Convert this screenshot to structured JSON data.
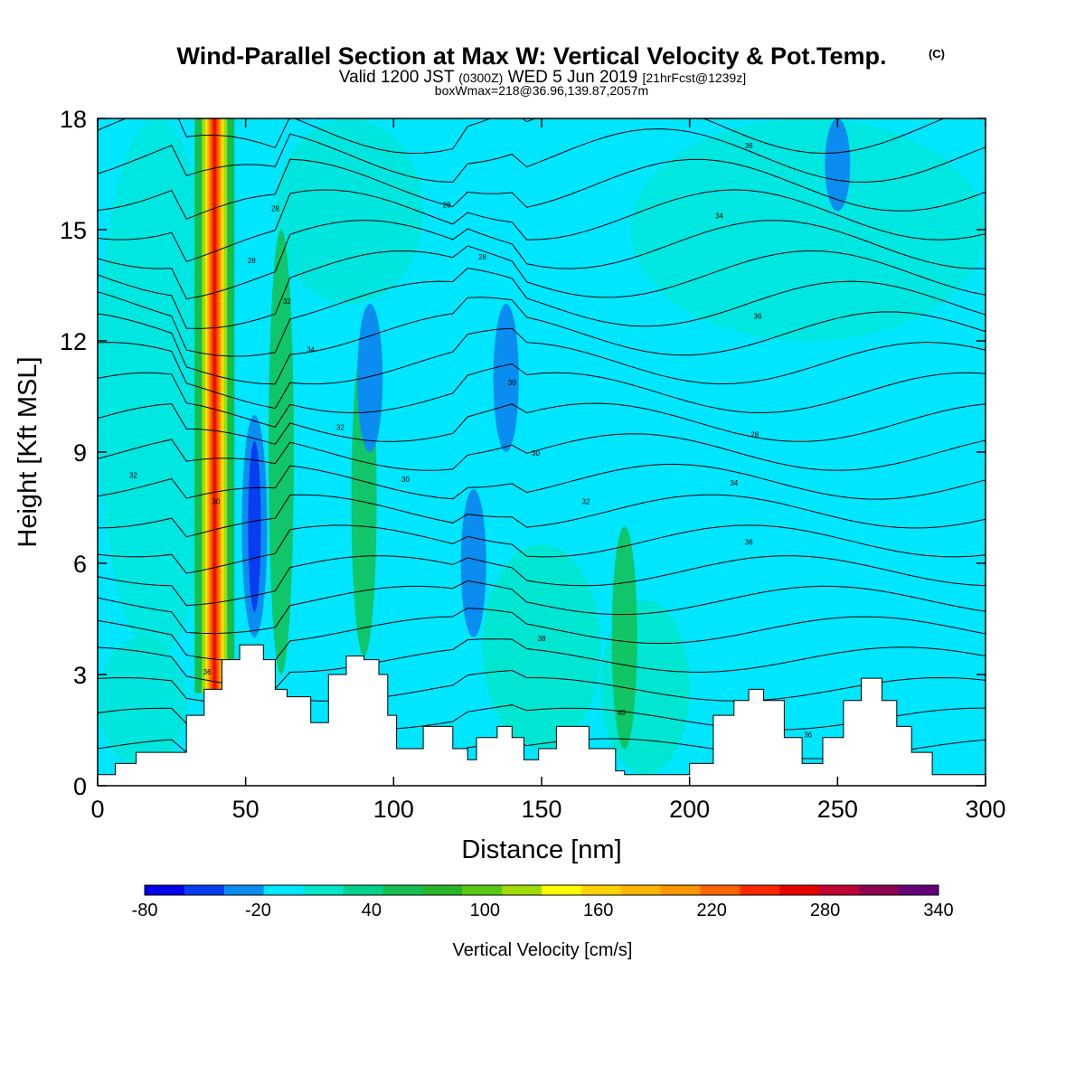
{
  "chart_data": {
    "type": "heatmap",
    "title": "Wind-Parallel Section at Max W: Vertical Velocity & Pot.Temp.",
    "title_mark": "(C)",
    "subtitle_main": "Valid 1200 JST",
    "subtitle_z": "(0300Z)",
    "subtitle_date": "WED 5 Jun 2019",
    "subtitle_fcst": "[21hrFcst@1239z]",
    "subtitle_box": "boxWmax=218@36.96,139.87,2057m",
    "xlabel": "Distance [nm]",
    "ylabel": "Height [Kft MSL]",
    "xlim": [
      0,
      300
    ],
    "ylim": [
      0,
      18
    ],
    "x_ticks": [
      "0",
      "50",
      "100",
      "150",
      "200",
      "250",
      "300"
    ],
    "y_ticks": [
      "0",
      "3",
      "6",
      "9",
      "12",
      "15",
      "18"
    ],
    "colorbar": {
      "label": "Vertical Velocity [cm/s]",
      "tick_labels": [
        "-80",
        "-20",
        "40",
        "100",
        "160",
        "220",
        "280",
        "340"
      ],
      "bounds": [
        -80,
        340
      ],
      "colors": [
        "#0000e6",
        "#0a3cf0",
        "#0a8cf0",
        "#00e6ff",
        "#00e6c8",
        "#00d28c",
        "#14be50",
        "#28b428",
        "#5ac814",
        "#a0dc0a",
        "#ffff00",
        "#ffd200",
        "#ffb400",
        "#ff9600",
        "#ff6400",
        "#ff2800",
        "#e60000",
        "#be0032",
        "#8c0050",
        "#640078"
      ]
    },
    "terrain": [
      [
        0,
        0.3
      ],
      [
        6,
        0.3
      ],
      [
        6,
        0.6
      ],
      [
        13,
        0.6
      ],
      [
        13,
        0.9
      ],
      [
        30,
        0.9
      ],
      [
        30,
        1.9
      ],
      [
        36,
        1.9
      ],
      [
        36,
        2.6
      ],
      [
        42,
        2.6
      ],
      [
        42,
        3.4
      ],
      [
        48,
        3.4
      ],
      [
        48,
        3.8
      ],
      [
        56,
        3.8
      ],
      [
        56,
        3.4
      ],
      [
        60,
        3.4
      ],
      [
        60,
        2.6
      ],
      [
        64,
        2.6
      ],
      [
        64,
        2.4
      ],
      [
        72,
        2.4
      ],
      [
        72,
        1.7
      ],
      [
        78,
        1.7
      ],
      [
        78,
        3.0
      ],
      [
        84,
        3.0
      ],
      [
        84,
        3.5
      ],
      [
        90,
        3.5
      ],
      [
        90,
        3.4
      ],
      [
        95,
        3.4
      ],
      [
        95,
        3.0
      ],
      [
        98,
        3.0
      ],
      [
        98,
        1.9
      ],
      [
        101,
        1.9
      ],
      [
        101,
        1.0
      ],
      [
        110,
        1.0
      ],
      [
        110,
        1.6
      ],
      [
        120,
        1.6
      ],
      [
        120,
        1.0
      ],
      [
        125,
        1.0
      ],
      [
        125,
        0.7
      ],
      [
        128,
        0.7
      ],
      [
        128,
        1.3
      ],
      [
        135,
        1.3
      ],
      [
        135,
        1.6
      ],
      [
        140,
        1.6
      ],
      [
        140,
        1.3
      ],
      [
        144,
        1.3
      ],
      [
        144,
        0.7
      ],
      [
        149,
        0.7
      ],
      [
        149,
        1.0
      ],
      [
        155,
        1.0
      ],
      [
        155,
        1.6
      ],
      [
        166,
        1.6
      ],
      [
        166,
        1.0
      ],
      [
        175,
        1.0
      ],
      [
        175,
        0.4
      ],
      [
        178,
        0.4
      ],
      [
        178,
        0.3
      ],
      [
        200,
        0.3
      ],
      [
        200,
        0.6
      ],
      [
        208,
        0.6
      ],
      [
        208,
        1.9
      ],
      [
        215,
        1.9
      ],
      [
        215,
        2.3
      ],
      [
        220,
        2.3
      ],
      [
        220,
        2.6
      ],
      [
        225,
        2.6
      ],
      [
        225,
        2.3
      ],
      [
        232,
        2.3
      ],
      [
        232,
        1.3
      ],
      [
        238,
        1.3
      ],
      [
        238,
        0.6
      ],
      [
        245,
        0.6
      ],
      [
        245,
        1.3
      ],
      [
        252,
        1.3
      ],
      [
        252,
        2.3
      ],
      [
        258,
        2.3
      ],
      [
        258,
        2.9
      ],
      [
        265,
        2.9
      ],
      [
        265,
        2.3
      ],
      [
        270,
        2.3
      ],
      [
        270,
        1.6
      ],
      [
        275,
        1.6
      ],
      [
        275,
        0.9
      ],
      [
        282,
        0.9
      ],
      [
        282,
        0.3
      ],
      [
        300,
        0.3
      ]
    ],
    "updraft_cores": [
      {
        "x": 39.5,
        "y_range": [
          2.5,
          18
        ],
        "w_max": 280
      },
      {
        "x": 62,
        "y_range": [
          3,
          15
        ],
        "w_max": 60
      },
      {
        "x": 90,
        "y_range": [
          3.5,
          12
        ],
        "w_max": 40
      },
      {
        "x": 178,
        "y_range": [
          1,
          7
        ],
        "w_max": 50
      }
    ],
    "downdraft_cores": [
      {
        "x": 53,
        "y_range": [
          4,
          10
        ],
        "w_min": -60
      },
      {
        "x": 92,
        "y_range": [
          9,
          13
        ],
        "w_min": -40
      },
      {
        "x": 127,
        "y_range": [
          4,
          8
        ],
        "w_min": -40
      },
      {
        "x": 138,
        "y_range": [
          9,
          13
        ],
        "w_min": -40
      },
      {
        "x": 250,
        "y_range": [
          15.5,
          18
        ],
        "w_min": -40
      }
    ],
    "theta_labels": [
      "32",
      "30",
      "30",
      "32",
      "34",
      "36",
      "38",
      "40",
      "36",
      "36",
      "34",
      "32",
      "30",
      "30",
      "28",
      "28",
      "28",
      "28",
      "32",
      "34",
      "36",
      "36",
      "28"
    ]
  }
}
